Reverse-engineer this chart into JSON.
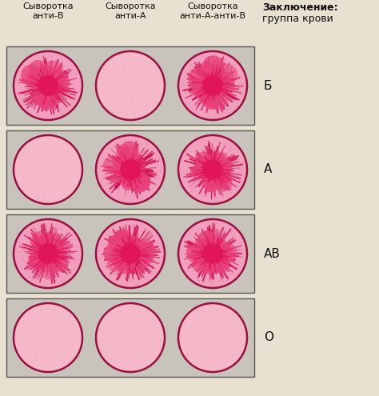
{
  "fig_bg": "#e8e0d0",
  "panel_bg_color": "#c8c4bc",
  "panel_edge_color": "#555555",
  "header_labels": [
    "Сыворотка\nанти-В",
    "Сыворотка\nанти-А",
    "Сыворотка\nанти-А-анти-В"
  ],
  "conclusion_bold": "Заключение:",
  "conclusion_text": "группа крови",
  "blood_types_latin": [
    "Б",
    "А",
    "АВ",
    "О"
  ],
  "agglutination": [
    [
      true,
      false,
      true
    ],
    [
      false,
      true,
      true
    ],
    [
      true,
      true,
      true
    ],
    [
      false,
      false,
      false
    ]
  ],
  "circle_fill_plain": "#f5b8c8",
  "circle_edge_color": "#9b1040",
  "agglu_outer_color": "#f0a0bc",
  "agglu_core_color": "#e0155a",
  "agglu_mid_color": "#e8407a",
  "agglu_spike_color": "#d01050",
  "panel_edge_lw": 1.0,
  "header_fontsize": 8.0,
  "label_fontsize": 10,
  "conclusion_fontsize": 9
}
